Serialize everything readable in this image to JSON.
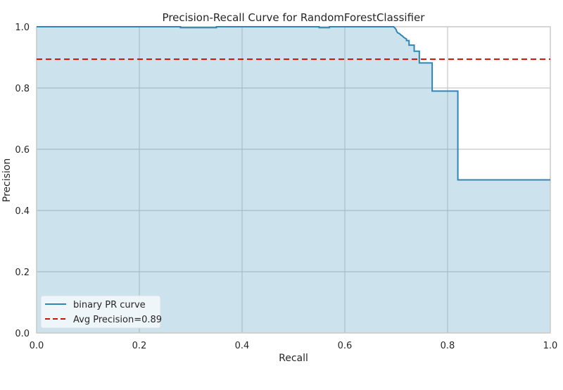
{
  "chart_data": {
    "type": "line",
    "title": "Precision-Recall Curve for RandomForestClassifier",
    "xlabel": "Recall",
    "ylabel": "Precision",
    "xlim": [
      0.0,
      1.0
    ],
    "ylim": [
      0.0,
      1.0
    ],
    "xticks": [
      0.0,
      0.2,
      0.4,
      0.6,
      0.8,
      1.0
    ],
    "yticks": [
      0.0,
      0.2,
      0.4,
      0.6,
      0.8,
      1.0
    ],
    "xtick_labels": [
      "0.0",
      "0.2",
      "0.4",
      "0.6",
      "0.8",
      "1.0"
    ],
    "ytick_labels": [
      "0.0",
      "0.2",
      "0.4",
      "0.6",
      "0.8",
      "1.0"
    ],
    "grid": true,
    "legend_position": "lower-left",
    "colors": {
      "curve": "#2e86b5",
      "fill": "#cce2ed",
      "avg": "#cc1100",
      "grid": "#c8c8c8",
      "grid_on_fill": "#a7bdc7",
      "axes_border": "#c9c9c9",
      "text": "#262626"
    },
    "series": [
      {
        "name": "binary PR curve",
        "x": [
          0.0,
          0.28,
          0.28,
          0.35,
          0.35,
          0.55,
          0.55,
          0.57,
          0.57,
          0.6,
          0.6,
          0.695,
          0.698,
          0.7,
          0.701,
          0.703,
          0.706,
          0.708,
          0.71,
          0.712,
          0.715,
          0.717,
          0.72,
          0.72,
          0.725,
          0.725,
          0.735,
          0.735,
          0.745,
          0.745,
          0.77,
          0.77,
          0.82,
          0.82,
          1.0
        ],
        "y": [
          1.0,
          1.0,
          0.997,
          0.997,
          1.0,
          1.0,
          0.997,
          0.997,
          1.0,
          1.0,
          1.0,
          1.0,
          0.995,
          0.99,
          0.985,
          0.98,
          0.978,
          0.975,
          0.972,
          0.97,
          0.965,
          0.963,
          0.96,
          0.955,
          0.955,
          0.94,
          0.94,
          0.92,
          0.92,
          0.882,
          0.882,
          0.79,
          0.79,
          0.5,
          0.5
        ]
      },
      {
        "name": "Avg Precision=0.89",
        "x": [
          0.0,
          1.0
        ],
        "y": [
          0.894,
          0.894
        ]
      }
    ]
  }
}
